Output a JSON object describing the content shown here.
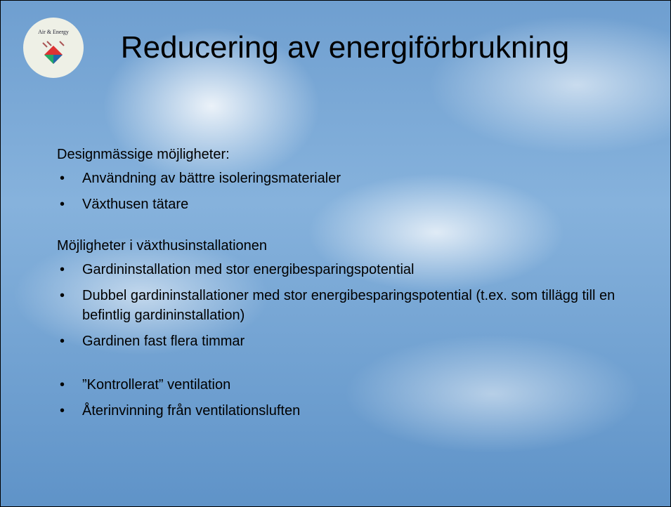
{
  "logo": {
    "label": "Air & Energy"
  },
  "title": "Reducering av energiförbrukning",
  "sections": [
    {
      "heading": "Designmässige möjligheter:",
      "bullets": [
        "Användning av bättre isoleringsmaterialer",
        "Växthusen tätare"
      ]
    },
    {
      "heading": "Möjligheter i växthusinstallationen",
      "bullets": [
        "Gardininstallation med stor energibesparingspotential",
        "Dubbel gardininstallationer med stor energibesparingspotential (t.ex. som tillägg till en befintlig gardininstallation)",
        "Gardinen fast flera timmar"
      ]
    },
    {
      "heading": null,
      "bullets": [
        "”Kontrollerat” ventilation",
        "Återinvinning från ventilationsluften"
      ]
    }
  ]
}
